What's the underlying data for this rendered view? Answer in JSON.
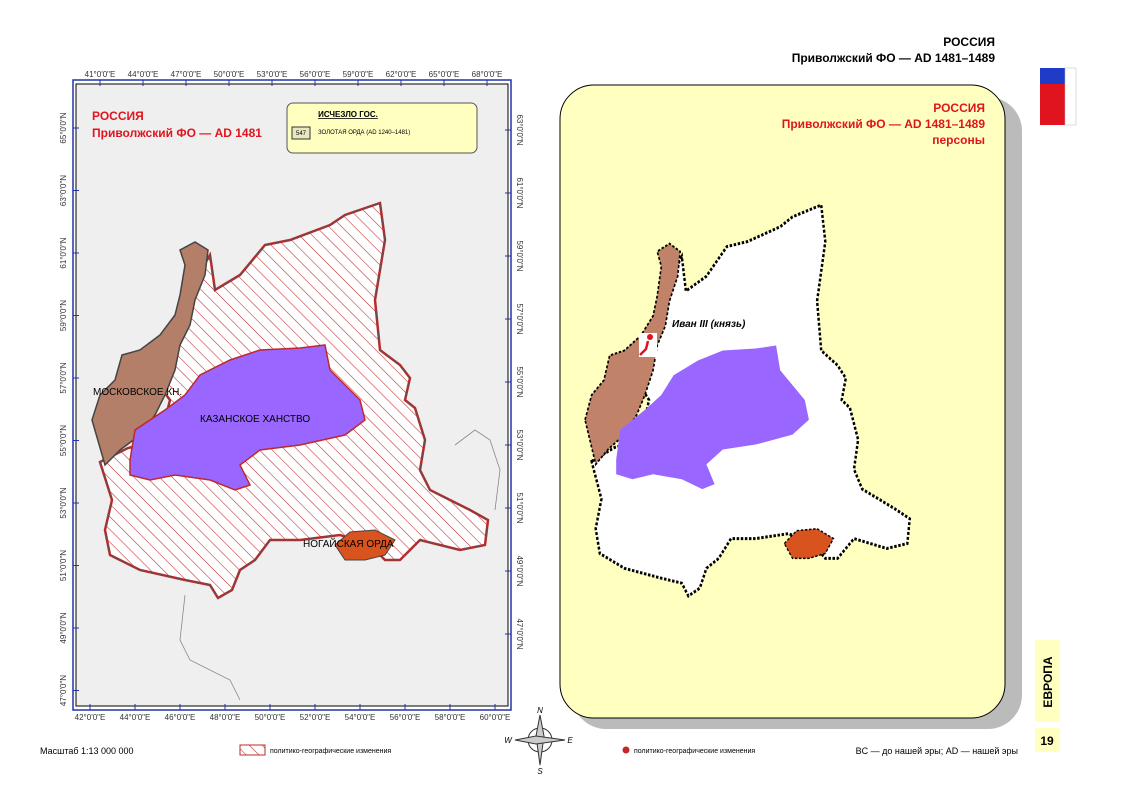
{
  "header": {
    "title": "РОССИЯ",
    "subtitle": "Приволжский ФО — AD 1481–1489"
  },
  "left_map": {
    "title": "РОССИЯ",
    "subtitle": "Приволжский ФО — AD 1481",
    "legend": {
      "title": "ИСЧЕЗЛО ГОС.",
      "code": "547",
      "label": "ЗОЛОТАЯ ОРДА (AD 1240–1481)"
    },
    "top_labels": [
      "41°0'0\"E",
      "44°0'0\"E",
      "47°0'0\"E",
      "50°0'0\"E",
      "53°0'0\"E",
      "56°0'0\"E",
      "59°0'0\"E",
      "62°0'0\"E",
      "65°0'0\"E",
      "68°0'0\"E"
    ],
    "bottom_labels": [
      "42°0'0\"E",
      "44°0'0\"E",
      "46°0'0\"E",
      "48°0'0\"E",
      "50°0'0\"E",
      "52°0'0\"E",
      "54°0'0\"E",
      "56°0'0\"E",
      "58°0'0\"E",
      "60°0'0\"E"
    ],
    "left_labels": [
      "65°0'0\"N",
      "63°0'0\"N",
      "61°0'0\"N",
      "59°0'0\"N",
      "57°0'0\"N",
      "55°0'0\"N",
      "53°0'0\"N",
      "51°0'0\"N",
      "49°0'0\"N",
      "47°0'0\"N"
    ],
    "right_labels": [
      "63°0'0\"N",
      "61°0'0\"N",
      "59°0'0\"N",
      "57°0'0\"N",
      "55°0'0\"N",
      "53°0'0\"N",
      "51°0'0\"N",
      "49°0'0\"N",
      "47°0'0\"N"
    ],
    "regions": {
      "moscow": "МОСКОВСКОЕ КН.",
      "kazan": "КАЗАНСКОЕ ХАНСТВО",
      "nogai": "НОГАЙСКАЯ ОРДА"
    }
  },
  "right_map": {
    "title": "РОССИЯ",
    "subtitle": "Приволжский ФО — AD 1481–1489",
    "subtitle2": "персоны",
    "person": "Иван III (князь)"
  },
  "compass": {
    "n": "N",
    "w": "W",
    "e": "E",
    "s": "S"
  },
  "footer": {
    "scale": "Масштаб 1:13 000 000",
    "legend_left": "политико-географические изменения",
    "legend_right": "политико-географические изменения",
    "note": "BC — до нашей эры; AD — нашей эры"
  },
  "tab": {
    "section": "ЕВРОПА",
    "page": "19"
  }
}
